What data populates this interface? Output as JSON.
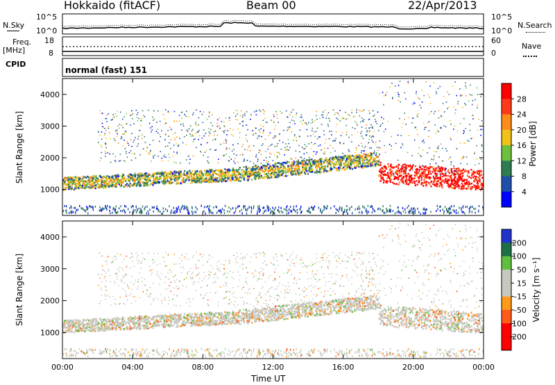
{
  "header": {
    "station": "Hokkaido (fitACF)",
    "beam": "Beam 00",
    "date": "22/Apr/2013"
  },
  "top_panel": {
    "left_label": "N.Sky",
    "right_label": "N.Search",
    "left_ticks": [
      "10^5",
      "10^0"
    ],
    "right_ticks": [
      "10^5",
      "10^0"
    ]
  },
  "freq_panel": {
    "left_label_1": "Freq.",
    "left_label_2": "[MHz]",
    "right_label": "Nave",
    "left_ticks": [
      "18",
      "8"
    ],
    "right_ticks": [
      "60",
      "0"
    ]
  },
  "cpid": {
    "label": "CPID",
    "value": "normal (fast) 151"
  },
  "chart_data": [
    {
      "type": "heatmap",
      "title": "",
      "ylabel": "Slant Range [km]",
      "xlabel": "",
      "x": [
        "00:00",
        "04:00",
        "08:00",
        "12:00",
        "16:00",
        "20:00",
        "00:00"
      ],
      "xlim_hours": [
        0,
        24
      ],
      "ylim": [
        180,
        4500
      ],
      "yticks": [
        1000,
        2000,
        3000,
        4000
      ],
      "colorbar": {
        "label": "Power [dB]",
        "ticks": [
          "4",
          "8",
          "12",
          "16",
          "20",
          "24",
          "28"
        ],
        "colors": [
          "#0000ff",
          "#1f4fa8",
          "#2e7d50",
          "#6fbf3f",
          "#f2c21a",
          "#ff8c1a",
          "#ff3a1a",
          "#ff0000"
        ]
      },
      "bands": [
        {
          "from_h": 0,
          "to_h": 10,
          "center_km": 1150,
          "width_km": 350,
          "level": "20"
        },
        {
          "from_h": 10,
          "to_h": 18,
          "center_km": 1500,
          "width_km": 450,
          "level": "16"
        },
        {
          "from_h": 18,
          "to_h": 24,
          "center_km": 1600,
          "width_km": 600,
          "level": "28"
        }
      ]
    },
    {
      "type": "heatmap",
      "title": "",
      "ylabel": "Slant Range [km]",
      "xlabel": "Time UT",
      "x": [
        "00:00",
        "04:00",
        "08:00",
        "12:00",
        "16:00",
        "20:00",
        "00:00"
      ],
      "xlim_hours": [
        0,
        24
      ],
      "ylim": [
        180,
        4500
      ],
      "yticks": [
        1000,
        2000,
        3000,
        4000
      ],
      "colorbar": {
        "label": "Velocity [m s⁻¹]",
        "ticks": [
          "200",
          "100",
          "50",
          "15",
          "-15",
          "-50",
          "-100",
          "-200"
        ],
        "colors": [
          "#2233cc",
          "#1f6f46",
          "#5fbf3f",
          "#c8c8c0",
          "#c8c8c0",
          "#ff9a1a",
          "#ff5a1a",
          "#ff0000"
        ]
      }
    }
  ]
}
